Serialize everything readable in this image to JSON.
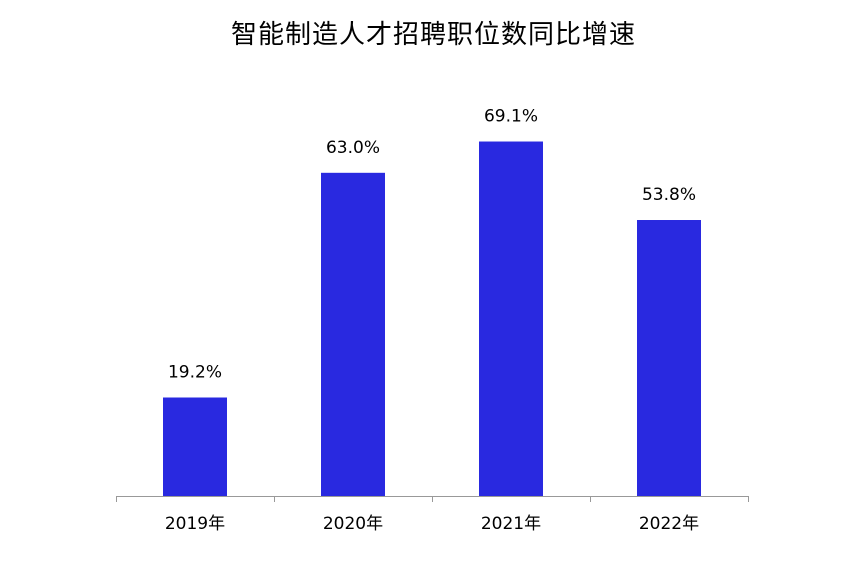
{
  "chart_data": {
    "type": "bar",
    "title": "智能制造人才招聘职位数同比增速",
    "categories": [
      "2019年",
      "2020年",
      "2021年",
      "2022年"
    ],
    "values": [
      19.2,
      63.0,
      69.1,
      53.8
    ],
    "value_labels": [
      "19.2%",
      "63.0%",
      "69.1%",
      "53.8%"
    ],
    "unit": "%",
    "xlabel": "",
    "ylabel": "",
    "ylim": [
      0,
      80
    ],
    "grid": false,
    "legend": "none",
    "bar_color": "#2929e0",
    "axis_color": "#999999"
  }
}
